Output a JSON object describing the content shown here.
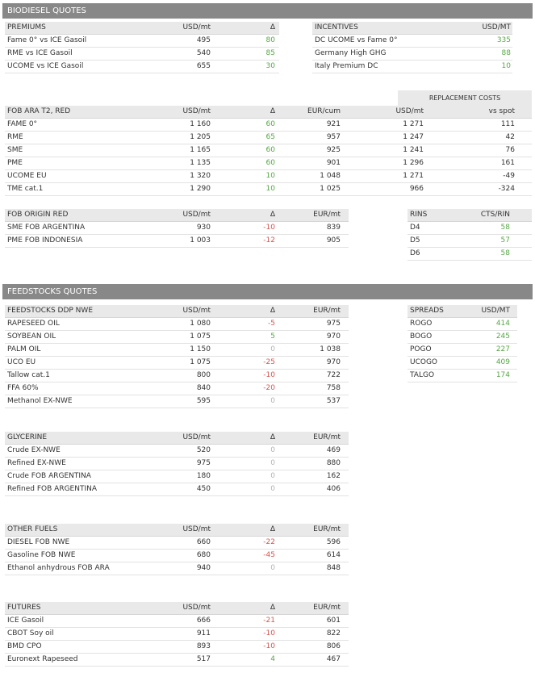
{
  "biodiesel": {
    "title": "BIODIESEL QUOTES",
    "premiums": {
      "header": [
        "PREMIUMS",
        "USD/mt",
        "Δ"
      ],
      "rows": [
        {
          "name": "Fame 0° vs ICE Gasoil",
          "usd": "495",
          "delta": "80"
        },
        {
          "name": "RME vs ICE Gasoil",
          "usd": "540",
          "delta": "85"
        },
        {
          "name": "UCOME vs ICE Gasoil",
          "usd": "655",
          "delta": "30"
        }
      ]
    },
    "incentives": {
      "header": [
        "INCENTIVES",
        "USD/MT"
      ],
      "rows": [
        {
          "name": "DC UCOME vs Fame 0°",
          "value": "335"
        },
        {
          "name": "Germany High GHG",
          "value": "88"
        },
        {
          "name": "Italy Premium DC",
          "value": "10"
        }
      ]
    },
    "replacement_costs_label": "REPLACEMENT COSTS",
    "fob_ara": {
      "header": [
        "FOB ARA T2, RED",
        "USD/mt",
        "Δ",
        "EUR/cum",
        "USD/mt",
        "vs spot"
      ],
      "rows": [
        {
          "name": "FAME 0°",
          "usd": "1 160",
          "delta": "60",
          "eur": "921",
          "repl_usd": "1 271",
          "vs_spot": "111"
        },
        {
          "name": "RME",
          "usd": "1 205",
          "delta": "65",
          "eur": "957",
          "repl_usd": "1 247",
          "vs_spot": "42"
        },
        {
          "name": "SME",
          "usd": "1 165",
          "delta": "60",
          "eur": "925",
          "repl_usd": "1 241",
          "vs_spot": "76"
        },
        {
          "name": "PME",
          "usd": "1 135",
          "delta": "60",
          "eur": "901",
          "repl_usd": "1 296",
          "vs_spot": "161"
        },
        {
          "name": "UCOME EU",
          "usd": "1 320",
          "delta": "10",
          "eur": "1 048",
          "repl_usd": "1 271",
          "vs_spot": "-49"
        },
        {
          "name": "TME cat.1",
          "usd": "1 290",
          "delta": "10",
          "eur": "1 025",
          "repl_usd": "966",
          "vs_spot": "-324"
        }
      ]
    },
    "fob_origin": {
      "header": [
        "FOB ORIGIN RED",
        "USD/mt",
        "Δ",
        "EUR/mt"
      ],
      "rows": [
        {
          "name": "SME FOB ARGENTINA",
          "usd": "930",
          "delta": "-10",
          "eur": "839"
        },
        {
          "name": "PME FOB INDONESIA",
          "usd": "1 003",
          "delta": "-12",
          "eur": "905"
        }
      ]
    },
    "rins": {
      "header": [
        "RINS",
        "CTS/RIN"
      ],
      "rows": [
        {
          "name": "D4",
          "value": "58"
        },
        {
          "name": "D5",
          "value": "57"
        },
        {
          "name": "D6",
          "value": "58"
        }
      ]
    }
  },
  "feedstocks": {
    "title": "FEEDSTOCKS QUOTES",
    "ddp": {
      "header": [
        "FEEDSTOCKS DDP NWE",
        "USD/mt",
        "Δ",
        "EUR/mt"
      ],
      "rows": [
        {
          "name": "RAPESEED OIL",
          "usd": "1 080",
          "delta": "-5",
          "eur": "975"
        },
        {
          "name": "SOYBEAN OIL",
          "usd": "1 075",
          "delta": "5",
          "eur": "970"
        },
        {
          "name": "PALM OIL",
          "usd": "1 150",
          "delta": "0",
          "eur": "1 038"
        },
        {
          "name": "UCO EU",
          "usd": "1 075",
          "delta": "-25",
          "eur": "970"
        },
        {
          "name": "Tallow cat.1",
          "usd": "800",
          "delta": "-10",
          "eur": "722"
        },
        {
          "name": "FFA 60%",
          "usd": "840",
          "delta": "-20",
          "eur": "758"
        },
        {
          "name": "Methanol EX-NWE",
          "usd": "595",
          "delta": "0",
          "eur": "537"
        }
      ]
    },
    "spreads": {
      "header": [
        "SPREADS",
        "USD/MT"
      ],
      "rows": [
        {
          "name": "ROGO",
          "value": "414"
        },
        {
          "name": "BOGO",
          "value": "245"
        },
        {
          "name": "POGO",
          "value": "227"
        },
        {
          "name": "UCOGO",
          "value": "409"
        },
        {
          "name": "TALGO",
          "value": "174"
        }
      ]
    },
    "glycerine": {
      "header": [
        "GLYCERINE",
        "USD/mt",
        "Δ",
        "EUR/mt"
      ],
      "rows": [
        {
          "name": "Crude EX-NWE",
          "usd": "520",
          "delta": "0",
          "eur": "469"
        },
        {
          "name": "Refined EX-NWE",
          "usd": "975",
          "delta": "0",
          "eur": "880"
        },
        {
          "name": "Crude FOB ARGENTINA",
          "usd": "180",
          "delta": "0",
          "eur": "162"
        },
        {
          "name": "Refined FOB ARGENTINA",
          "usd": "450",
          "delta": "0",
          "eur": "406"
        }
      ]
    },
    "other_fuels": {
      "header": [
        "OTHER FUELS",
        "USD/mt",
        "Δ",
        "EUR/mt"
      ],
      "rows": [
        {
          "name": "DIESEL FOB NWE",
          "usd": "660",
          "delta": "-22",
          "eur": "596"
        },
        {
          "name": "Gasoline FOB NWE",
          "usd": "680",
          "delta": "-45",
          "eur": "614"
        },
        {
          "name": "Ethanol anhydrous FOB ARA",
          "usd": "940",
          "delta": "0",
          "eur": "848"
        }
      ]
    },
    "futures": {
      "header": [
        "FUTURES",
        "USD/mt",
        "Δ",
        "EUR/mt"
      ],
      "rows": [
        {
          "name": "ICE Gasoil",
          "usd": "666",
          "delta": "-21",
          "eur": "601"
        },
        {
          "name": "CBOT Soy oil",
          "usd": "911",
          "delta": "-10",
          "eur": "822"
        },
        {
          "name": "BMD CPO",
          "usd": "893",
          "delta": "-10",
          "eur": "806"
        },
        {
          "name": "Euronext Rapeseed",
          "usd": "517",
          "delta": "4",
          "eur": "467"
        }
      ]
    }
  },
  "colors": {
    "banner": "#888888",
    "header_bg": "#e9e9e9",
    "positive": "#57a846",
    "negative": "#d9534f",
    "neutral": "#b3b3b3"
  }
}
